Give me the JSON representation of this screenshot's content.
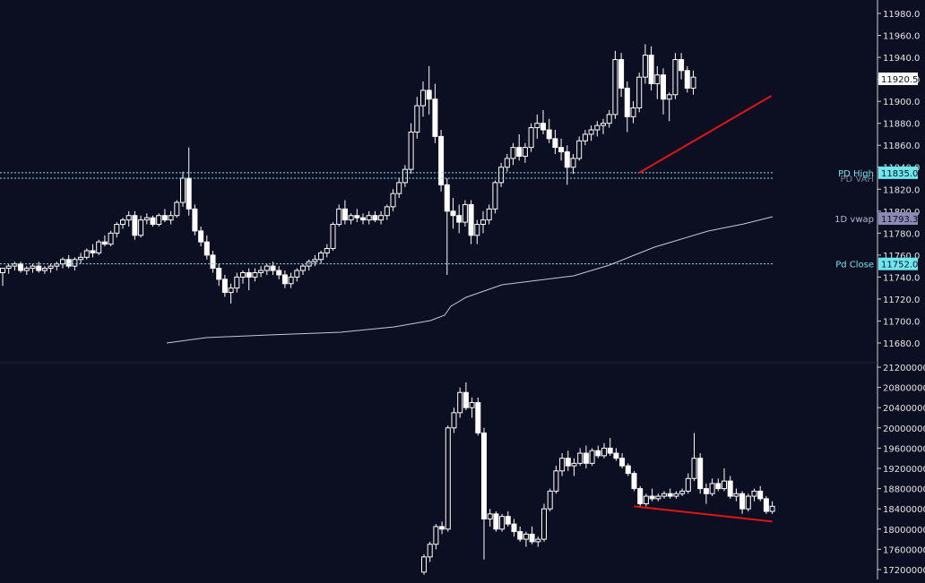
{
  "theme": {
    "background": "#0c0e22",
    "candle_color": "#ffffff",
    "axis_text_color": "#e6e6e6",
    "vwap_color": "#c6c8d8",
    "level_color": "#6fe7ee",
    "trendline_color": "#e01616",
    "last_price_bg": "#ffffff",
    "vwap_tag_bg": "#8c8ab4"
  },
  "chart_data": [
    {
      "type": "candlestick",
      "pane": "price",
      "ylim": [
        11680,
        11990
      ],
      "y_ticks": [
        "11980.0",
        "11960.0",
        "11940.0",
        "11920.0",
        "11900.0",
        "11880.0",
        "11860.0",
        "11840.0",
        "11820.0",
        "11800.0",
        "11780.0",
        "11760.0",
        "11740.0",
        "11720.0",
        "11700.0",
        "11680.0"
      ],
      "candles": [
        [
          11744,
          11748,
          11732,
          11748
        ],
        [
          11748,
          11752,
          11743,
          11750
        ],
        [
          11750,
          11754,
          11746,
          11752
        ],
        [
          11752,
          11754,
          11744,
          11746
        ],
        [
          11746,
          11750,
          11742,
          11748
        ],
        [
          11748,
          11752,
          11744,
          11750
        ],
        [
          11750,
          11754,
          11744,
          11746
        ],
        [
          11746,
          11750,
          11743,
          11748
        ],
        [
          11748,
          11752,
          11744,
          11750
        ],
        [
          11750,
          11754,
          11746,
          11752
        ],
        [
          11752,
          11758,
          11748,
          11756
        ],
        [
          11756,
          11760,
          11748,
          11750
        ],
        [
          11750,
          11758,
          11746,
          11756
        ],
        [
          11756,
          11762,
          11752,
          11758
        ],
        [
          11758,
          11766,
          11756,
          11764
        ],
        [
          11764,
          11770,
          11758,
          11762
        ],
        [
          11762,
          11774,
          11760,
          11772
        ],
        [
          11772,
          11778,
          11768,
          11770
        ],
        [
          11770,
          11782,
          11768,
          11780
        ],
        [
          11780,
          11790,
          11776,
          11788
        ],
        [
          11788,
          11794,
          11784,
          11792
        ],
        [
          11792,
          11800,
          11786,
          11796
        ],
        [
          11796,
          11800,
          11774,
          11778
        ],
        [
          11778,
          11796,
          11776,
          11792
        ],
        [
          11792,
          11798,
          11788,
          11794
        ],
        [
          11794,
          11796,
          11786,
          11788
        ],
        [
          11788,
          11798,
          11786,
          11796
        ],
        [
          11796,
          11802,
          11790,
          11792
        ],
        [
          11792,
          11800,
          11788,
          11796
        ],
        [
          11796,
          11810,
          11794,
          11808
        ],
        [
          11808,
          11836,
          11804,
          11830
        ],
        [
          11830,
          11858,
          11796,
          11802
        ],
        [
          11802,
          11806,
          11778,
          11782
        ],
        [
          11782,
          11786,
          11768,
          11772
        ],
        [
          11772,
          11778,
          11756,
          11760
        ],
        [
          11760,
          11764,
          11744,
          11748
        ],
        [
          11748,
          11752,
          11732,
          11738
        ],
        [
          11738,
          11742,
          11722,
          11726
        ],
        [
          11726,
          11734,
          11716,
          11730
        ],
        [
          11730,
          11744,
          11726,
          11740
        ],
        [
          11740,
          11746,
          11734,
          11744
        ],
        [
          11744,
          11748,
          11728,
          11740
        ],
        [
          11740,
          11748,
          11736,
          11744
        ],
        [
          11744,
          11750,
          11740,
          11746
        ],
        [
          11746,
          11752,
          11742,
          11750
        ],
        [
          11750,
          11754,
          11742,
          11746
        ],
        [
          11746,
          11750,
          11738,
          11742
        ],
        [
          11742,
          11746,
          11730,
          11734
        ],
        [
          11734,
          11744,
          11730,
          11740
        ],
        [
          11740,
          11748,
          11736,
          11746
        ],
        [
          11746,
          11752,
          11742,
          11750
        ],
        [
          11750,
          11756,
          11746,
          11754
        ],
        [
          11754,
          11760,
          11750,
          11756
        ],
        [
          11756,
          11764,
          11752,
          11762
        ],
        [
          11762,
          11770,
          11758,
          11766
        ],
        [
          11766,
          11790,
          11764,
          11788
        ],
        [
          11788,
          11806,
          11786,
          11802
        ],
        [
          11802,
          11810,
          11788,
          11792
        ],
        [
          11792,
          11798,
          11788,
          11796
        ],
        [
          11796,
          11802,
          11790,
          11794
        ],
        [
          11794,
          11798,
          11788,
          11792
        ],
        [
          11792,
          11800,
          11788,
          11796
        ],
        [
          11796,
          11800,
          11790,
          11792
        ],
        [
          11792,
          11800,
          11788,
          11796
        ],
        [
          11796,
          11806,
          11792,
          11804
        ],
        [
          11804,
          11820,
          11800,
          11816
        ],
        [
          11816,
          11830,
          11812,
          11826
        ],
        [
          11826,
          11842,
          11822,
          11838
        ],
        [
          11838,
          11880,
          11834,
          11872
        ],
        [
          11872,
          11904,
          11866,
          11896
        ],
        [
          11896,
          11918,
          11886,
          11910
        ],
        [
          11910,
          11932,
          11888,
          11902
        ],
        [
          11902,
          11916,
          11862,
          11868
        ],
        [
          11868,
          11874,
          11818,
          11824
        ],
        [
          11824,
          11830,
          11742,
          11800
        ],
        [
          11800,
          11812,
          11784,
          11796
        ],
        [
          11796,
          11806,
          11780,
          11790
        ],
        [
          11790,
          11810,
          11786,
          11806
        ],
        [
          11806,
          11810,
          11770,
          11778
        ],
        [
          11778,
          11792,
          11770,
          11788
        ],
        [
          11788,
          11800,
          11780,
          11792
        ],
        [
          11792,
          11806,
          11788,
          11802
        ],
        [
          11802,
          11828,
          11798,
          11826
        ],
        [
          11826,
          11844,
          11822,
          11840
        ],
        [
          11840,
          11852,
          11836,
          11848
        ],
        [
          11848,
          11862,
          11842,
          11858
        ],
        [
          11858,
          11870,
          11846,
          11850
        ],
        [
          11850,
          11862,
          11844,
          11858
        ],
        [
          11858,
          11880,
          11854,
          11876
        ],
        [
          11876,
          11888,
          11866,
          11880
        ],
        [
          11880,
          11892,
          11870,
          11874
        ],
        [
          11874,
          11884,
          11862,
          11866
        ],
        [
          11866,
          11874,
          11852,
          11858
        ],
        [
          11858,
          11866,
          11846,
          11854
        ],
        [
          11854,
          11860,
          11824,
          11840
        ],
        [
          11840,
          11852,
          11834,
          11848
        ],
        [
          11848,
          11868,
          11846,
          11864
        ],
        [
          11864,
          11874,
          11860,
          11870
        ],
        [
          11870,
          11878,
          11864,
          11874
        ],
        [
          11874,
          11882,
          11868,
          11878
        ],
        [
          11878,
          11884,
          11870,
          11880
        ],
        [
          11880,
          11892,
          11876,
          11888
        ],
        [
          11888,
          11946,
          11884,
          11938
        ],
        [
          11938,
          11944,
          11904,
          11912
        ],
        [
          11912,
          11918,
          11872,
          11886
        ],
        [
          11886,
          11900,
          11880,
          11894
        ],
        [
          11894,
          11926,
          11890,
          11922
        ],
        [
          11922,
          11952,
          11916,
          11942
        ],
        [
          11942,
          11950,
          11910,
          11916
        ],
        [
          11916,
          11932,
          11902,
          11924
        ],
        [
          11924,
          11930,
          11888,
          11902
        ],
        [
          11902,
          11908,
          11882,
          11906
        ],
        [
          11906,
          11944,
          11902,
          11938
        ],
        [
          11938,
          11944,
          11920,
          11928
        ],
        [
          11928,
          11932,
          11908,
          11912
        ],
        [
          11912,
          11928,
          11906,
          11922
        ]
      ],
      "overlays": [
        {
          "type": "vwap_line",
          "tag": "1D vwap",
          "value": "11793.3"
        },
        {
          "type": "horizontal_level",
          "tag": "PD High",
          "value": "11835.0",
          "y": 11835,
          "style": "dotted"
        },
        {
          "type": "horizontal_level",
          "tag": "PD VAH",
          "y": 11830,
          "style": "dotted"
        },
        {
          "type": "horizontal_level",
          "tag": "Pd Close",
          "value": "11752.0",
          "y": 11752,
          "style": "dotted"
        },
        {
          "type": "trendline",
          "from_candle": 106,
          "from_value": 11835,
          "to_candle": 128,
          "to_value": 11905
        }
      ],
      "last_price": "11920.5"
    },
    {
      "type": "candlestick",
      "pane": "indicator",
      "ylim": [
        17140000,
        21250000
      ],
      "y_ticks": [
        "21200000",
        "20800000",
        "20400000",
        "20000000",
        "19600000",
        "19200000",
        "18800000",
        "18400000",
        "18000000",
        "17600000",
        "17200000"
      ],
      "candles": [
        [
          17150000,
          17500000,
          17100000,
          17450000
        ],
        [
          17450000,
          17750000,
          17350000,
          17700000
        ],
        [
          17700000,
          18100000,
          17600000,
          18050000
        ],
        [
          18050000,
          18150000,
          17900000,
          18000000
        ],
        [
          18000000,
          20050000,
          17950000,
          20000000
        ],
        [
          20000000,
          20400000,
          19900000,
          20300000
        ],
        [
          20300000,
          20800000,
          20200000,
          20700000
        ],
        [
          20700000,
          20900000,
          20350000,
          20400000
        ],
        [
          20400000,
          20600000,
          20200000,
          20500000
        ],
        [
          20500000,
          20600000,
          19850000,
          19900000
        ],
        [
          19900000,
          20000000,
          17400000,
          18200000
        ],
        [
          18200000,
          18400000,
          18050000,
          18300000
        ],
        [
          18300000,
          18350000,
          17950000,
          18000000
        ],
        [
          18000000,
          18300000,
          17950000,
          18250000
        ],
        [
          18250000,
          18350000,
          18050000,
          18100000
        ],
        [
          18100000,
          18200000,
          17850000,
          17950000
        ],
        [
          17950000,
          18050000,
          17750000,
          17800000
        ],
        [
          17800000,
          17950000,
          17650000,
          17900000
        ],
        [
          17900000,
          18050000,
          17700000,
          17750000
        ],
        [
          17750000,
          17850000,
          17650000,
          17800000
        ],
        [
          17800000,
          18500000,
          17750000,
          18400000
        ],
        [
          18400000,
          18800000,
          18350000,
          18750000
        ],
        [
          18750000,
          19250000,
          18700000,
          19150000
        ],
        [
          19150000,
          19500000,
          19050000,
          19400000
        ],
        [
          19400000,
          19550000,
          19150000,
          19250000
        ],
        [
          19250000,
          19400000,
          19050000,
          19300000
        ],
        [
          19300000,
          19600000,
          19250000,
          19500000
        ],
        [
          19500000,
          19650000,
          19200000,
          19300000
        ],
        [
          19300000,
          19600000,
          19250000,
          19550000
        ],
        [
          19550000,
          19650000,
          19400000,
          19450000
        ],
        [
          19450000,
          19700000,
          19400000,
          19600000
        ],
        [
          19600000,
          19800000,
          19450000,
          19500000
        ],
        [
          19500000,
          19600000,
          19350000,
          19400000
        ],
        [
          19400000,
          19500000,
          19200000,
          19250000
        ],
        [
          19250000,
          19300000,
          19050000,
          19100000
        ],
        [
          19100000,
          19150000,
          18750000,
          18800000
        ],
        [
          18800000,
          18850000,
          18450000,
          18500000
        ],
        [
          18500000,
          18700000,
          18450000,
          18650000
        ],
        [
          18650000,
          18800000,
          18550000,
          18600000
        ],
        [
          18600000,
          18700000,
          18550000,
          18650000
        ],
        [
          18650000,
          18750000,
          18600000,
          18700000
        ],
        [
          18700000,
          18800000,
          18600000,
          18650000
        ],
        [
          18650000,
          18750000,
          18600000,
          18700000
        ],
        [
          18700000,
          18800000,
          18650000,
          18750000
        ],
        [
          18750000,
          19100000,
          18700000,
          19000000
        ],
        [
          19000000,
          19900000,
          18950000,
          19400000
        ],
        [
          19400000,
          19500000,
          18700000,
          18800000
        ],
        [
          18800000,
          18900000,
          18500000,
          18700000
        ],
        [
          18700000,
          19000000,
          18650000,
          18900000
        ],
        [
          18900000,
          19000000,
          18750000,
          18800000
        ],
        [
          18800000,
          19200000,
          18750000,
          18950000
        ],
        [
          18950000,
          19050000,
          18600000,
          18650000
        ],
        [
          18650000,
          18800000,
          18550000,
          18700000
        ],
        [
          18700000,
          18750000,
          18300000,
          18400000
        ],
        [
          18400000,
          18700000,
          18350000,
          18650000
        ],
        [
          18650000,
          18800000,
          18550000,
          18750000
        ],
        [
          18750000,
          18850000,
          18550000,
          18600000
        ],
        [
          18600000,
          18650000,
          18300000,
          18350000
        ],
        [
          18350000,
          18550000,
          18300000,
          18450000
        ]
      ],
      "overlays": [
        {
          "type": "trendline",
          "from_candle": 35,
          "from_value": 18450000,
          "to_candle": 58,
          "to_value": 18150000
        }
      ]
    }
  ]
}
